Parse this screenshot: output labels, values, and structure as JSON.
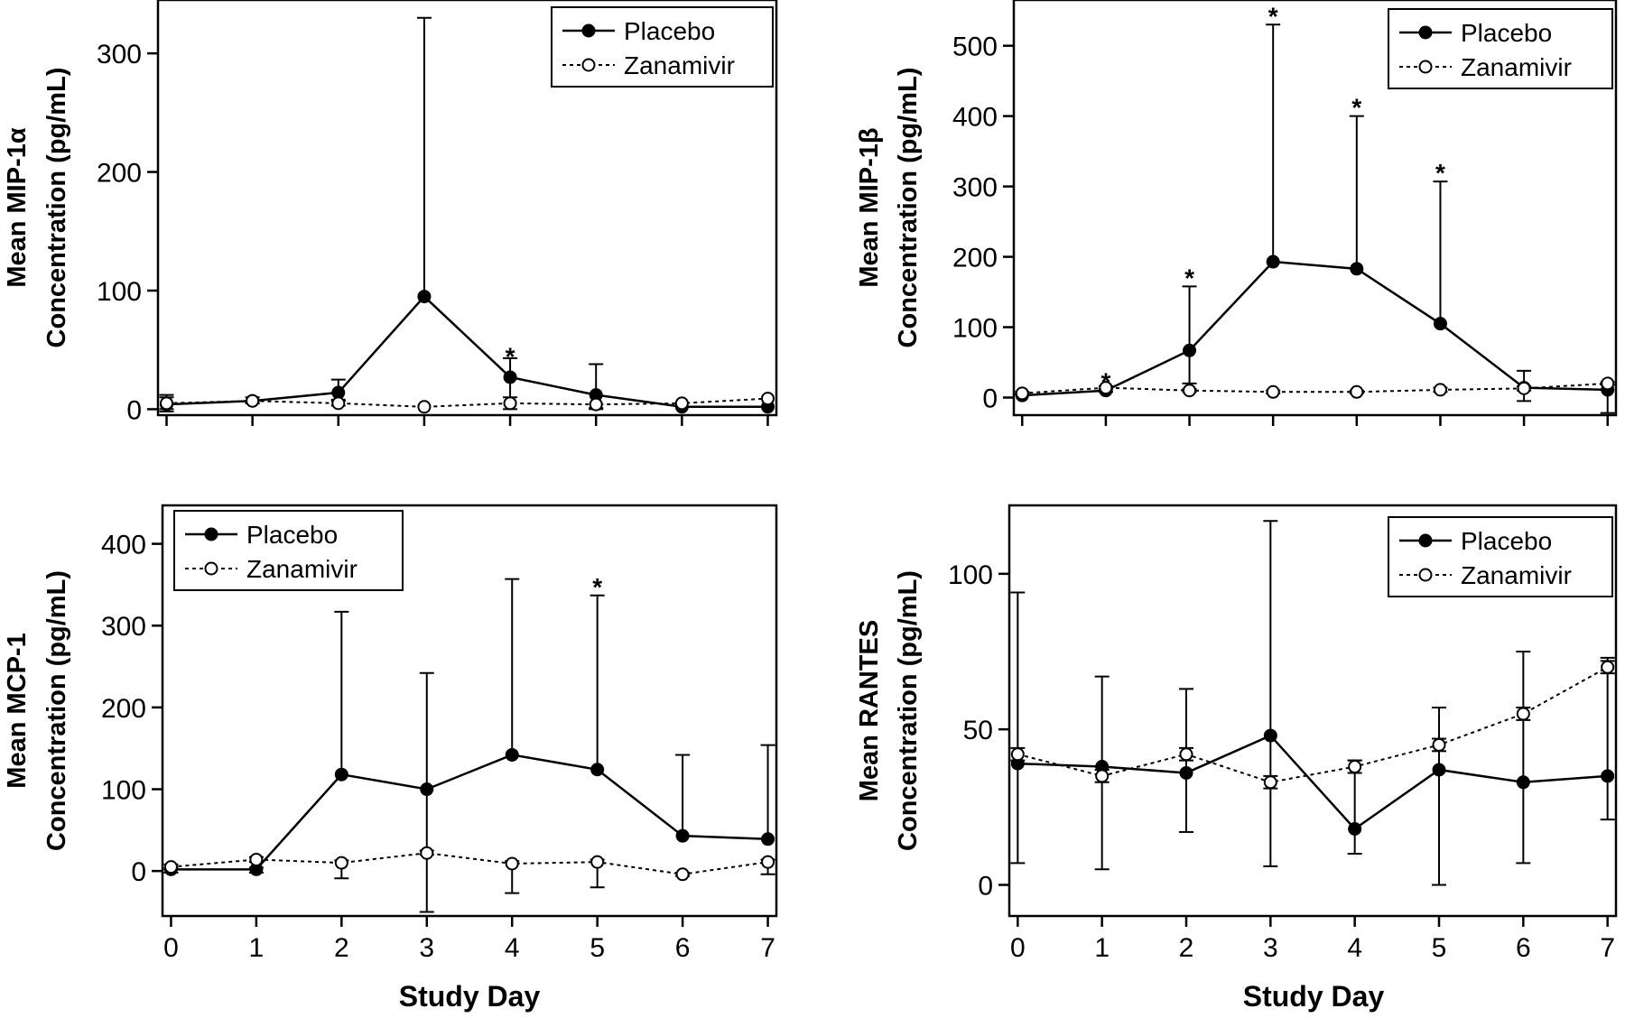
{
  "figure": {
    "xlabel": "Study Day"
  },
  "chart_data": [
    {
      "type": "line",
      "ylabel_lines": [
        "Mean MIP-1α",
        "Concentration (pg/mL)"
      ],
      "x": [
        0,
        1,
        2,
        3,
        4,
        5,
        6,
        7
      ],
      "xlim": [
        -0.1,
        7.1
      ],
      "ylim": [
        -5,
        345
      ],
      "yticks": [
        0,
        100,
        200,
        300
      ],
      "show_xtick_labels": false,
      "legend": "top-right",
      "series": [
        {
          "name": "Placebo",
          "marker": "filled-circle",
          "line": "solid",
          "values": [
            4,
            7,
            14,
            95,
            27,
            12,
            2,
            2
          ],
          "err_upper": [
            12,
            8,
            25,
            330,
            43,
            38,
            3,
            3
          ],
          "err_lower": [
            -2,
            5,
            8,
            95,
            10,
            0,
            1,
            1
          ]
        },
        {
          "name": "Zanamivir",
          "marker": "open-circle",
          "line": "dotted",
          "values": [
            5,
            7,
            5,
            2,
            5,
            4,
            5,
            9
          ],
          "err_upper": [
            10,
            10,
            7,
            2,
            6,
            5,
            6,
            9
          ],
          "err_lower": [
            0,
            5,
            3,
            1,
            0,
            1,
            4,
            8
          ]
        }
      ],
      "annotations": [
        {
          "x": 4,
          "y": 48,
          "text": "*"
        }
      ]
    },
    {
      "type": "line",
      "ylabel_lines": [
        "Mean MIP-1β",
        "Concentration (pg/mL)"
      ],
      "x": [
        0,
        1,
        2,
        3,
        4,
        5,
        6,
        7
      ],
      "xlim": [
        -0.1,
        7.1
      ],
      "ylim": [
        -25,
        565
      ],
      "yticks": [
        0,
        100,
        200,
        300,
        400,
        500
      ],
      "show_xtick_labels": false,
      "legend": "top-right",
      "series": [
        {
          "name": "Placebo",
          "marker": "filled-circle",
          "line": "solid",
          "values": [
            3,
            10,
            67,
            193,
            183,
            105,
            14,
            11
          ],
          "err_upper": [
            5,
            12,
            158,
            530,
            400,
            307,
            38,
            11
          ],
          "err_lower": [
            2,
            8,
            20,
            193,
            183,
            105,
            -5,
            -22
          ]
        },
        {
          "name": "Zanamivir",
          "marker": "open-circle",
          "line": "dotted",
          "values": [
            6,
            14,
            10,
            8,
            8,
            11,
            13,
            20
          ],
          "err_upper": [
            8,
            16,
            12,
            10,
            10,
            14,
            16,
            22
          ],
          "err_lower": [
            4,
            12,
            8,
            6,
            6,
            8,
            10,
            18
          ]
        }
      ],
      "annotations": [
        {
          "x": 1,
          "y": 28,
          "text": "*"
        },
        {
          "x": 2,
          "y": 176,
          "text": "*"
        },
        {
          "x": 3,
          "y": 548,
          "text": "*"
        },
        {
          "x": 4,
          "y": 418,
          "text": "*"
        },
        {
          "x": 5,
          "y": 325,
          "text": "*"
        }
      ]
    },
    {
      "type": "line",
      "ylabel_lines": [
        "Mean MCP-1",
        "Concentration (pg/mL)"
      ],
      "x": [
        0,
        1,
        2,
        3,
        4,
        5,
        6,
        7
      ],
      "xlim": [
        -0.1,
        7.1
      ],
      "ylim": [
        -55,
        447
      ],
      "yticks": [
        0,
        100,
        200,
        300,
        400
      ],
      "show_xtick_labels": true,
      "xticks": [
        0,
        1,
        2,
        3,
        4,
        5,
        6,
        7
      ],
      "legend": "top-left",
      "series": [
        {
          "name": "Placebo",
          "marker": "filled-circle",
          "line": "solid",
          "values": [
            2,
            2,
            118,
            100,
            142,
            124,
            43,
            39
          ],
          "err_upper": [
            4,
            4,
            317,
            242,
            357,
            337,
            142,
            154
          ],
          "err_lower": [
            -2,
            -2,
            118,
            -50,
            142,
            124,
            43,
            39
          ]
        },
        {
          "name": "Zanamivir",
          "marker": "open-circle",
          "line": "dotted",
          "values": [
            5,
            14,
            10,
            22,
            9,
            11,
            -4,
            11
          ],
          "err_upper": [
            8,
            17,
            13,
            25,
            12,
            14,
            -2,
            14
          ],
          "err_lower": [
            2,
            11,
            -9,
            20,
            -27,
            -20,
            -6,
            -4
          ]
        }
      ],
      "annotations": [
        {
          "x": 5,
          "y": 352,
          "text": "*"
        }
      ]
    },
    {
      "type": "line",
      "ylabel_lines": [
        "Mean RANTES",
        "Concentration (pg/mL)"
      ],
      "x": [
        0,
        1,
        2,
        3,
        4,
        5,
        6,
        7
      ],
      "xlim": [
        -0.1,
        7.1
      ],
      "ylim": [
        -10,
        122
      ],
      "yticks": [
        0,
        50,
        100
      ],
      "show_xtick_labels": true,
      "xticks": [
        0,
        1,
        2,
        3,
        4,
        5,
        6,
        7
      ],
      "legend": "top-right",
      "series": [
        {
          "name": "Placebo",
          "marker": "filled-circle",
          "line": "solid",
          "values": [
            39,
            38,
            36,
            48,
            18,
            37,
            33,
            35
          ],
          "err_upper": [
            94,
            67,
            63,
            117,
            40,
            57,
            75,
            73
          ],
          "err_lower": [
            7,
            5,
            17,
            6,
            10,
            0,
            7,
            21
          ]
        },
        {
          "name": "Zanamivir",
          "marker": "open-circle",
          "line": "dotted",
          "values": [
            42,
            35,
            42,
            33,
            38,
            45,
            55,
            70
          ],
          "err_upper": [
            44,
            37,
            44,
            35,
            40,
            47,
            57,
            72
          ],
          "err_lower": [
            40,
            33,
            40,
            31,
            36,
            43,
            53,
            68
          ]
        }
      ],
      "annotations": []
    }
  ]
}
